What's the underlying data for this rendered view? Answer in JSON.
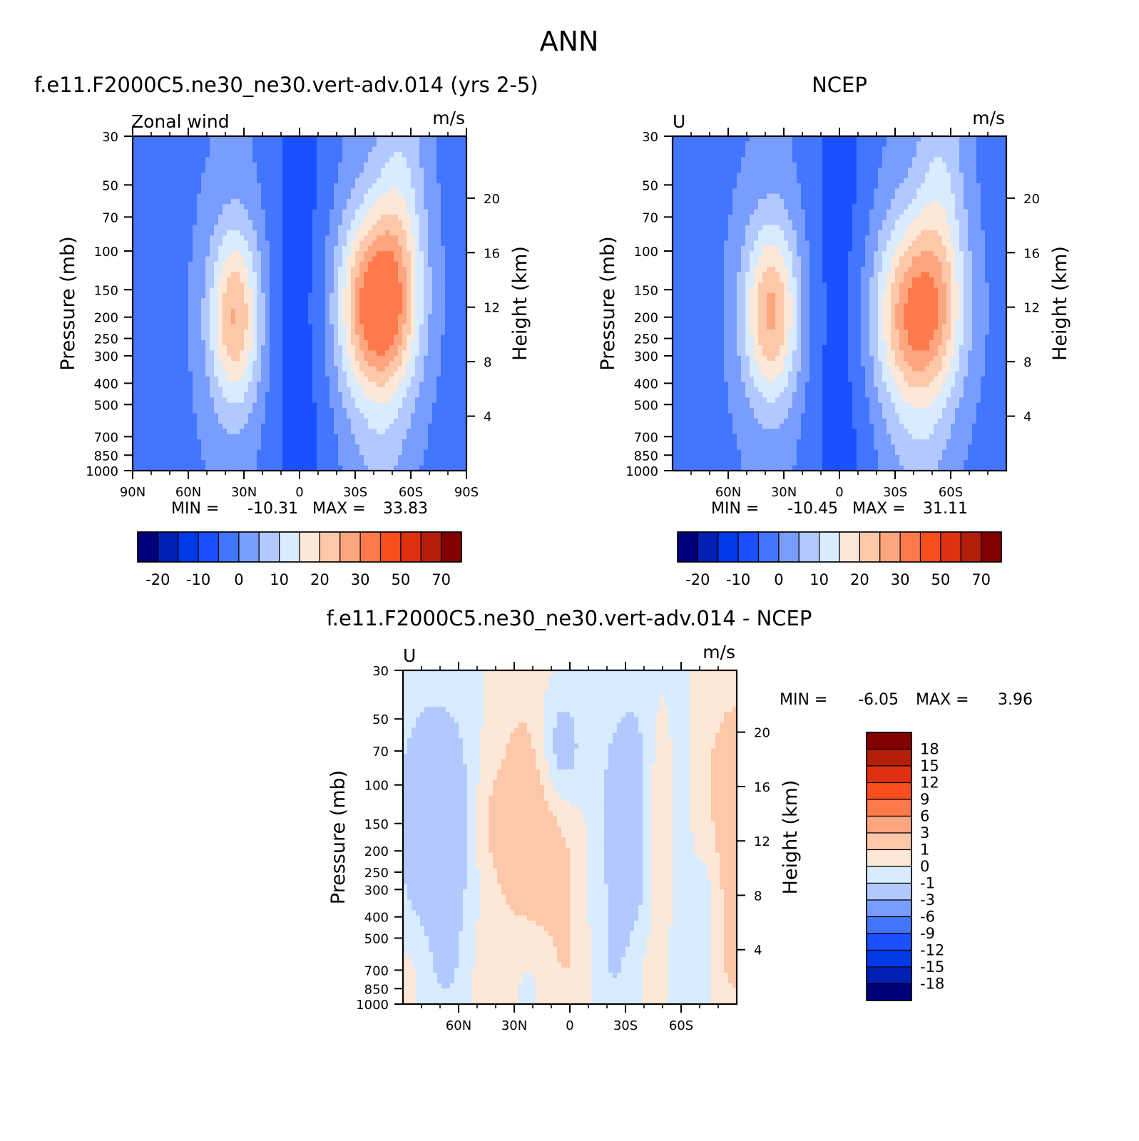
{
  "figure": {
    "title": "ANN"
  },
  "colors": {
    "abs_palette": [
      "#00007d",
      "#0020b3",
      "#0039e6",
      "#1a50ff",
      "#4276ff",
      "#799cff",
      "#b1c9ff",
      "#d9ebff",
      "#fde8d8",
      "#fdc8a9",
      "#fda57f",
      "#fc7a4b",
      "#fb4e1f",
      "#df3010",
      "#b31e0b",
      "#820000"
    ],
    "diff_palette": [
      "#820000",
      "#b31e0b",
      "#df3010",
      "#fb4e1f",
      "#fc7a4b",
      "#fda57f",
      "#fdc8a9",
      "#fde8d8",
      "#d9ebff",
      "#b1c9ff",
      "#799cff",
      "#4276ff",
      "#1a50ff",
      "#0039e6",
      "#0020b3",
      "#00007d"
    ]
  },
  "chart_data": [
    {
      "id": "model",
      "type": "heatmap",
      "title": "f.e11.F2000C5.ne30_ne30.vert-adv.014 (yrs 2-5)",
      "left_label": "Zonal wind",
      "units": "m/s",
      "ylabel": "Pressure (mb)",
      "y2label": "Height (km)",
      "xlim": [
        90,
        -90
      ],
      "ylim": [
        1000,
        30
      ],
      "y_scale": "log",
      "x_ticks": [
        90,
        60,
        30,
        0,
        -30,
        -60,
        -90
      ],
      "x_tick_labels": [
        "90N",
        "60N",
        "30N",
        "0",
        "30S",
        "60S",
        "90S"
      ],
      "y_ticks": [
        30,
        50,
        70,
        100,
        150,
        200,
        250,
        300,
        400,
        500,
        700,
        850,
        1000
      ],
      "y_tick_labels": [
        "30",
        "50",
        "70",
        "100",
        "150",
        "200",
        "250",
        "300",
        "400",
        "500",
        "700",
        "850",
        "1000"
      ],
      "height_ticks": [
        4,
        8,
        12,
        16,
        20
      ],
      "height_tick_labels": [
        "4",
        "8",
        "12",
        "16",
        "20"
      ],
      "stats": {
        "min_label": "MIN =",
        "min": "-10.31",
        "max_label": "MAX =",
        "max": "33.83"
      },
      "jets": [
        {
          "lat": -42,
          "p": 180,
          "peak": 36,
          "wlat": 20,
          "wp": 1.0
        },
        {
          "lat": 35,
          "p": 200,
          "peak": 25,
          "wlat": 14,
          "wp": 0.95
        }
      ],
      "colorbar": {
        "tick_labels": [
          "-20",
          "-10",
          "0",
          "10",
          "20",
          "30",
          "50",
          "70"
        ]
      }
    },
    {
      "id": "obs",
      "type": "heatmap",
      "title": "NCEP",
      "left_label": "U",
      "units": "m/s",
      "ylabel": "Pressure (mb)",
      "y2label": "Height (km)",
      "xlim": [
        90,
        -90
      ],
      "ylim": [
        1000,
        30
      ],
      "y_scale": "log",
      "x_ticks": [
        60,
        30,
        0,
        -30,
        -60
      ],
      "x_tick_labels": [
        "60N",
        "30N",
        "0",
        "30S",
        "60S"
      ],
      "y_ticks": [
        30,
        50,
        70,
        100,
        150,
        200,
        250,
        300,
        400,
        500,
        700,
        850,
        1000
      ],
      "y_tick_labels": [
        "30",
        "50",
        "70",
        "100",
        "150",
        "200",
        "250",
        "300",
        "400",
        "500",
        "700",
        "850",
        "1000"
      ],
      "height_ticks": [
        4,
        8,
        12,
        16,
        20
      ],
      "height_tick_labels": [
        "4",
        "8",
        "12",
        "16",
        "20"
      ],
      "stats": {
        "min_label": "MIN =",
        "min": "-10.45",
        "max_label": "MAX =",
        "max": "31.11"
      },
      "jets": [
        {
          "lat": -42,
          "p": 200,
          "peak": 32,
          "wlat": 22,
          "wp": 1.0
        },
        {
          "lat": 37,
          "p": 190,
          "peak": 26,
          "wlat": 15,
          "wp": 0.95
        }
      ],
      "colorbar": {
        "tick_labels": [
          "-20",
          "-10",
          "0",
          "10",
          "20",
          "30",
          "50",
          "70"
        ]
      }
    },
    {
      "id": "diff",
      "type": "heatmap",
      "title": "f.e11.F2000C5.ne30_ne30.vert-adv.014 - NCEP",
      "left_label": "U",
      "units": "m/s",
      "ylabel": "Pressure (mb)",
      "y2label": "Height (km)",
      "xlim": [
        90,
        -90
      ],
      "ylim": [
        1000,
        30
      ],
      "y_scale": "log",
      "x_ticks": [
        60,
        30,
        0,
        -30,
        -60
      ],
      "x_tick_labels": [
        "60N",
        "30N",
        "0",
        "30S",
        "60S"
      ],
      "y_ticks": [
        30,
        50,
        70,
        100,
        150,
        200,
        250,
        300,
        400,
        500,
        700,
        850,
        1000
      ],
      "y_tick_labels": [
        "30",
        "50",
        "70",
        "100",
        "150",
        "200",
        "250",
        "300",
        "400",
        "500",
        "700",
        "850",
        "1000"
      ],
      "height_ticks": [
        4,
        8,
        12,
        16,
        20
      ],
      "height_tick_labels": [
        "4",
        "8",
        "12",
        "16",
        "20"
      ],
      "stats": {
        "min_label": "MIN =",
        "min": "-6.05",
        "max_label": "MAX =",
        "max": "3.96"
      },
      "colorbar": {
        "orientation": "vertical",
        "tick_labels": [
          "18",
          "15",
          "12",
          "9",
          "6",
          "3",
          "1",
          "0",
          "-1",
          "-3",
          "-6",
          "-9",
          "-12",
          "-15",
          "-18"
        ]
      }
    }
  ]
}
